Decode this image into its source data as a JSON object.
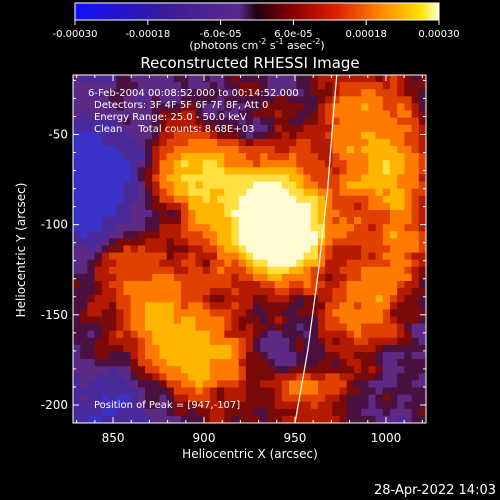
{
  "chart_data": {
    "type": "heatmap",
    "title": "Reconstructed RHESSI Image",
    "xlabel": "Heliocentric X (arcsec)",
    "ylabel": "Heliocentric Y (arcsec)",
    "xlim": [
      828,
      1022
    ],
    "ylim": [
      -210,
      -17
    ],
    "x_ticks": [
      850,
      900,
      950,
      1000
    ],
    "y_ticks": [
      -50,
      -100,
      -150,
      -200
    ],
    "colorbar": {
      "range": [
        -0.0003,
        0.0003
      ],
      "tick_values": [
        -0.0003,
        -0.00018,
        -6e-05,
        6e-05,
        0.00018,
        0.0003
      ],
      "tick_labels": [
        "-0.00030",
        "-0.00018",
        "-6.0e-05",
        "6.0e-05",
        "0.00018",
        "0.00030"
      ],
      "units_prefix": "(photons cm",
      "units_exp1": "-2",
      "units_mid": " s",
      "units_exp2": "-1",
      "units_mid2": " asec",
      "units_exp3": "-2",
      "units_suffix": ")"
    },
    "annotations": [
      "6-Feb-2004 00:08:52.000 to 00:14:52.000",
      "Detectors: 3F 4F 5F 6F 7F 8F, Att 0",
      "Energy Range: 25.0 - 50.0 keV",
      "Clean     Total counts: 8.68E+03"
    ],
    "peak_label": "Position of Peak = [947,-107]",
    "peak_position": [
      947,
      -107
    ],
    "limb_curve": [
      [
        950,
        -210
      ],
      [
        957,
        -170
      ],
      [
        963,
        -125
      ],
      [
        968,
        -80
      ],
      [
        971,
        -40
      ],
      [
        973,
        -17
      ]
    ],
    "hot_spots": [
      {
        "x": 935,
        "y": -95,
        "amp": 1.0,
        "r": 22
      },
      {
        "x": 945,
        "y": -108,
        "amp": 0.9,
        "r": 14
      },
      {
        "x": 890,
        "y": -70,
        "amp": 0.55,
        "r": 18
      },
      {
        "x": 990,
        "y": -40,
        "amp": 0.5,
        "r": 20
      },
      {
        "x": 1005,
        "y": -75,
        "amp": 0.45,
        "r": 16
      },
      {
        "x": 880,
        "y": -160,
        "amp": 0.55,
        "r": 22
      },
      {
        "x": 905,
        "y": -180,
        "amp": 0.4,
        "r": 16
      },
      {
        "x": 990,
        "y": -150,
        "amp": 0.45,
        "r": 18
      },
      {
        "x": 1010,
        "y": -110,
        "amp": 0.4,
        "r": 16
      },
      {
        "x": 860,
        "y": -120,
        "amp": 0.3,
        "r": 18
      },
      {
        "x": 960,
        "y": -200,
        "amp": 0.35,
        "r": 16
      }
    ],
    "cold_spots": [
      {
        "x": 840,
        "y": -80,
        "amp": 1.0,
        "r": 22
      },
      {
        "x": 850,
        "y": -200,
        "amp": 0.5,
        "r": 16
      }
    ]
  },
  "footer": {
    "timestamp": "28-Apr-2022 14:03"
  }
}
